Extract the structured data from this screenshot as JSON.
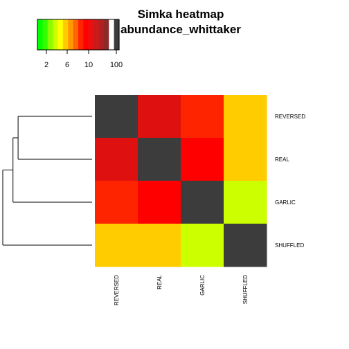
{
  "chart_data": {
    "type": "heatmap",
    "title_line1": "Simka heatmap",
    "title_line2": "abundance_whittaker",
    "rows": [
      "REVERSED",
      "REAL",
      "GARLIC",
      "SHUFFLED"
    ],
    "columns": [
      "REVERSED",
      "REAL",
      "GARLIC",
      "SHUFFLED"
    ],
    "cell_colors": [
      [
        "#3c3c3c",
        "#de1010",
        "#ff2400",
        "#ffcc00"
      ],
      [
        "#de1010",
        "#3c3c3c",
        "#ff0000",
        "#ffcc00"
      ],
      [
        "#ff2400",
        "#ff0000",
        "#3c3c3c",
        "#ccff00"
      ],
      [
        "#ffcc00",
        "#ffcc00",
        "#ccff00",
        "#3c3c3c"
      ]
    ],
    "color_key": {
      "tick_labels": [
        "2",
        "6",
        "10",
        "100"
      ],
      "colors": [
        "#00ff00",
        "#33ff00",
        "#88ff00",
        "#ccff00",
        "#ffff00",
        "#ffcc00",
        "#ff9900",
        "#ff6600",
        "#ff2400",
        "#ff0000",
        "#e81010",
        "#cc1a1a",
        "#b02020",
        "#8c2a2a",
        "#ffffff",
        "#3c3c3c"
      ]
    },
    "dendrogram": {
      "merges": [
        [
          "REVERSED",
          "REAL"
        ],
        [
          "REVERSED+REAL",
          "GARLIC"
        ],
        [
          "REVERSED+REAL+GARLIC",
          "SHUFFLED"
        ]
      ],
      "heights": [
        0.29,
        0.31,
        0.35
      ]
    }
  }
}
